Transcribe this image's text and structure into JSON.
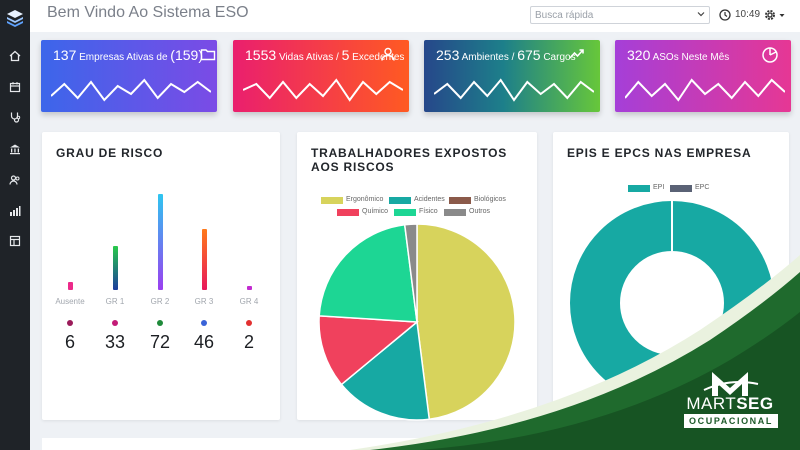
{
  "header": {
    "title": "Bem Vindo Ao Sistema ESO",
    "search": {
      "placeholder": "Busca rápida",
      "value": ""
    },
    "time": "10:49"
  },
  "sidebar": {
    "items": [
      {
        "icon": "home-icon"
      },
      {
        "icon": "calendar-icon"
      },
      {
        "icon": "stethoscope-icon"
      },
      {
        "icon": "building-icon"
      },
      {
        "icon": "users-icon"
      },
      {
        "icon": "chart-icon"
      },
      {
        "icon": "layout-icon"
      }
    ]
  },
  "stats": {
    "empresas": {
      "value": "137",
      "text": "Empresas Ativas de",
      "total": "(159)",
      "icon": "folder-icon",
      "spark": [
        8,
        20,
        6,
        22,
        4,
        18,
        10,
        24,
        6,
        20,
        12,
        22,
        12
      ]
    },
    "vidas": {
      "value": "1553",
      "text": "Vidas Ativas /",
      "value2": "5",
      "text2": "Excedentes",
      "icon": "user-icon",
      "spark": [
        14,
        20,
        6,
        22,
        6,
        20,
        8,
        24,
        4,
        22,
        10,
        22,
        14
      ]
    },
    "ambientes": {
      "value": "253",
      "text": "Ambientes /",
      "value2": "675",
      "text2": "Cargos",
      "icon": "trend-icon",
      "spark": [
        10,
        20,
        6,
        22,
        8,
        24,
        4,
        22,
        10,
        20,
        6,
        22,
        12
      ]
    },
    "asos": {
      "value": "320",
      "text": "ASOs Neste Mês",
      "icon": "pie-icon",
      "spark": [
        6,
        22,
        8,
        20,
        4,
        24,
        10,
        20,
        6,
        22,
        8,
        24,
        12
      ]
    }
  },
  "grau_risco": {
    "title": "GRAU DE RISCO",
    "items": [
      {
        "label": "Ausente",
        "count": "6",
        "value": 6,
        "color_top": "#ec2a8a",
        "color_bottom": "#ec2a8a",
        "dot": "#9b1b5a"
      },
      {
        "label": "GR 1",
        "count": "33",
        "value": 33,
        "color_top": "#28c94a",
        "color_bottom": "#1c3c9e",
        "dot": "#c31b77"
      },
      {
        "label": "GR 2",
        "count": "72",
        "value": 72,
        "color_top": "#2ec6f0",
        "color_bottom": "#9b3ff0",
        "dot": "#1f8a3a"
      },
      {
        "label": "GR 3",
        "count": "46",
        "value": 46,
        "color_top": "#ff7a1a",
        "color_bottom": "#e8185c",
        "dot": "#3a63d8"
      },
      {
        "label": "GR 4",
        "count": "2",
        "value": 2,
        "color_top": "#c22bd0",
        "color_bottom": "#c22bd0",
        "dot": "#e23030"
      }
    ]
  },
  "expostos": {
    "title": "TRABALHADORES EXPOSTOS AOS RISCOS",
    "legend": [
      "Ergonômico",
      "Acidentes",
      "Biológicos",
      "Químico",
      "Físico",
      "Outros"
    ]
  },
  "epis": {
    "title": "EPIS E EPCS NAS EMPRESA",
    "legend": [
      "EPI",
      "EPC"
    ]
  },
  "brand": {
    "name_light": "MART",
    "name_bold": "SEG",
    "subtitle": "OCUPACIONAL"
  },
  "chart_data": [
    {
      "type": "bar",
      "title": "GRAU DE RISCO",
      "categories": [
        "Ausente",
        "GR 1",
        "GR 2",
        "GR 3",
        "GR 4"
      ],
      "values": [
        6,
        33,
        72,
        46,
        2
      ]
    },
    {
      "type": "pie",
      "title": "TRABALHADORES EXPOSTOS AOS RISCOS",
      "labels": [
        "Ergonômico",
        "Acidentes",
        "Biológicos",
        "Químico",
        "Físico",
        "Outros"
      ],
      "values": [
        48,
        16,
        0,
        12,
        22,
        2
      ],
      "colors": [
        "#d7d35c",
        "#17a9a3",
        "#8b5a4a",
        "#f0415d",
        "#1dd694",
        "#8a8a8a"
      ]
    },
    {
      "type": "pie",
      "title": "EPIS E EPCS NAS EMPRESA",
      "labels": [
        "EPI",
        "EPC"
      ],
      "values": [
        100,
        0
      ],
      "colors": [
        "#17a9a3",
        "#5a6275"
      ]
    }
  ]
}
